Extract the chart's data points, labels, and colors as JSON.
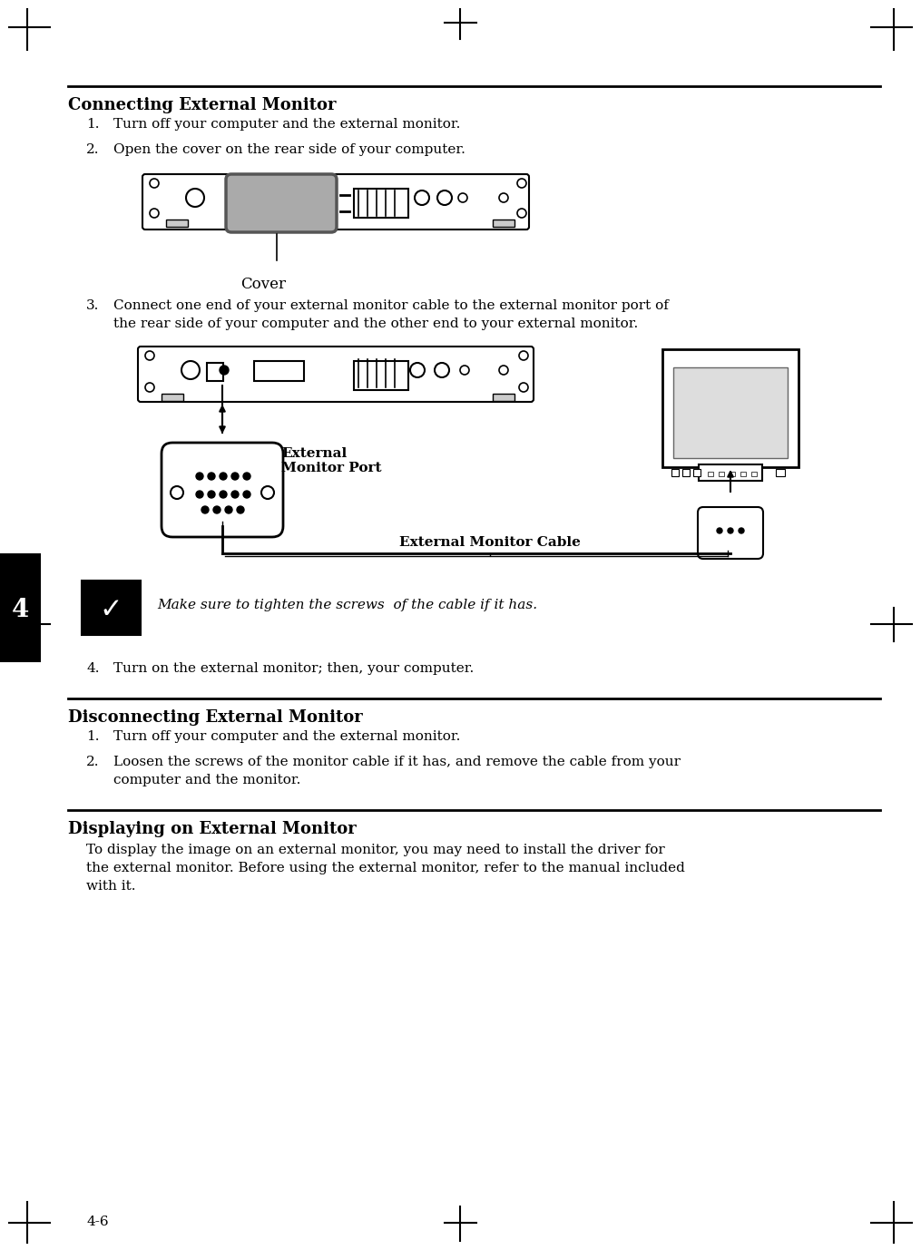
{
  "page_number": "4-6",
  "chapter_number": "4",
  "background_color": "#ffffff",
  "section1_title": "Connecting External Monitor",
  "section1_items": [
    "Turn off your computer and the external monitor.",
    "Open the cover on the rear side of your computer.",
    "Connect one end of your external monitor cable to the external monitor port of\nthe rear side of your computer and the other end to your external monitor.",
    "Turn on the external monitor; then, your computer."
  ],
  "note_text": "Make sure to tighten the screws  of the cable if it has.",
  "section2_title": "Disconnecting External Monitor",
  "section2_items": [
    "Turn off your computer and the external monitor.",
    "Loosen the screws of the monitor cable if it has, and remove the cable from your\ncomputer and the monitor."
  ],
  "section3_title": "Displaying on External Monitor",
  "section3_body": "To display the image on an external monitor, you may need to install the driver for\nthe external monitor. Before using the external monitor, refer to the manual included\nwith it.",
  "label_cover": "Cover",
  "label_ext_monitor_port": "External\nMonitor Port",
  "label_ext_monitor_cable": "External Monitor Cable"
}
